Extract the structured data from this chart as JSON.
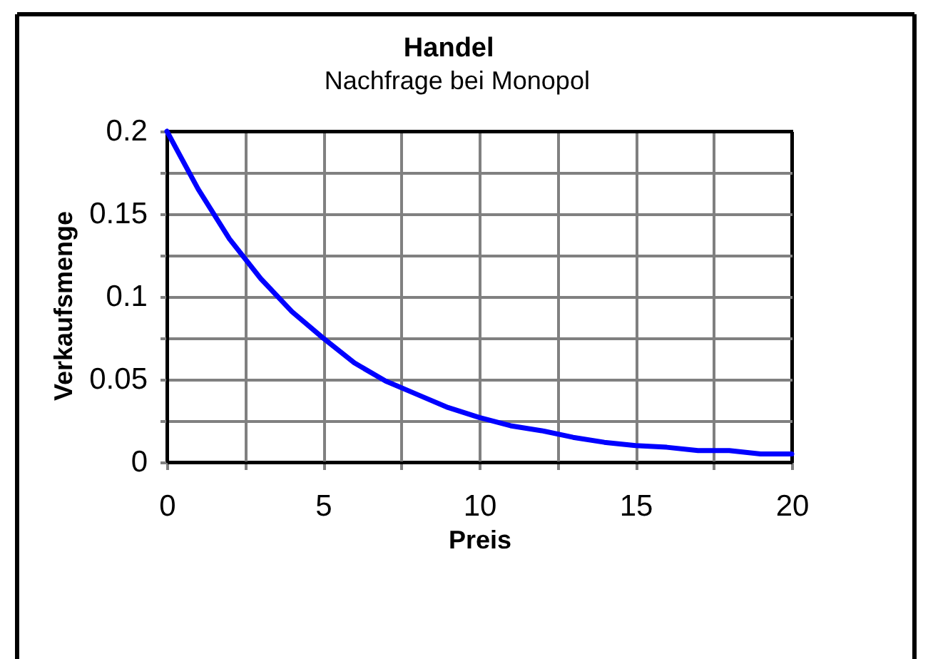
{
  "chart_data": {
    "type": "line",
    "title": "Handel",
    "subtitle": "Nachfrage bei Monopol",
    "xlabel": "Preis",
    "ylabel": "Verkaufsmenge",
    "x": [
      0,
      1,
      2,
      3,
      4,
      5,
      6,
      7,
      8,
      9,
      10,
      11,
      12,
      13,
      14,
      15,
      16,
      17,
      18,
      19,
      20
    ],
    "series": [
      {
        "color": "#0000ff",
        "values": [
          0.2,
          0.165,
          0.135,
          0.111,
          0.091,
          0.075,
          0.06,
          0.049,
          0.041,
          0.033,
          0.027,
          0.022,
          0.019,
          0.015,
          0.012,
          0.01,
          0.009,
          0.007,
          0.007,
          0.005,
          0.005
        ]
      }
    ],
    "xlim": [
      0,
      20
    ],
    "ylim": [
      0,
      0.2
    ],
    "xticks": [
      0,
      {
        "value": 2.5,
        "label": null
      },
      5,
      {
        "value": 7.5,
        "label": null
      },
      10,
      {
        "value": 12.5,
        "label": null
      },
      15,
      {
        "value": 17.5,
        "label": null
      },
      20
    ],
    "yticks": [
      0,
      {
        "value": 0.025,
        "label": null
      },
      0.05,
      {
        "value": 0.075,
        "label": null
      },
      0.1,
      {
        "value": 0.125,
        "label": null
      },
      0.15,
      {
        "value": 0.175,
        "label": null
      },
      0.2
    ],
    "grid": true
  }
}
